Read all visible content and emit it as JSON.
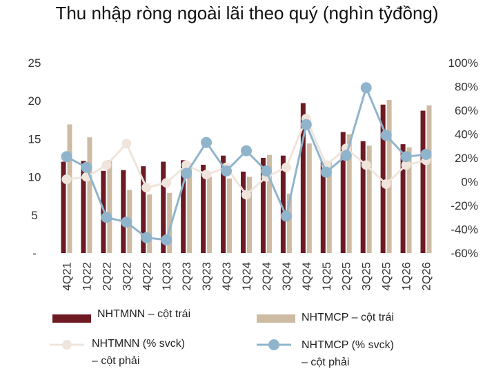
{
  "chart_data": {
    "type": "bar",
    "title": "Thu nhập ròng ngoài lãi theo quý (nghìn tỷđồng)",
    "categories": [
      "4Q21",
      "1Q22",
      "2Q22",
      "3Q22",
      "4Q22",
      "1Q23",
      "2Q23",
      "3Q23",
      "4Q23",
      "1Q24",
      "2Q24",
      "3Q24",
      "4Q24",
      "1Q25",
      "2Q25",
      "3Q25",
      "4Q25",
      "1Q26",
      "2Q26"
    ],
    "y_left": {
      "ticks": [
        "-",
        "5",
        "10",
        "15",
        "20",
        "25"
      ],
      "range": [
        0,
        25
      ]
    },
    "y_right": {
      "ticks": [
        "-60%",
        "-40%",
        "-20%",
        "0%",
        "20%",
        "40%",
        "60%",
        "80%",
        "100%"
      ],
      "range": [
        -60,
        100
      ]
    },
    "grid": false,
    "series": [
      {
        "name": "NHTMNN – cột trái",
        "kind": "bar",
        "axis": "left",
        "color": "#6e1a23",
        "values": [
          12.0,
          12.1,
          10.8,
          10.9,
          11.4,
          12.0,
          12.2,
          11.6,
          12.8,
          10.7,
          12.5,
          12.8,
          19.7,
          12.0,
          15.9,
          14.7,
          19.5,
          14.3,
          18.7
        ]
      },
      {
        "name": "NHTMCP – cột trái",
        "kind": "bar",
        "axis": "left",
        "color": "#cdbba3",
        "values": [
          16.9,
          15.2,
          12.2,
          8.3,
          7.7,
          7.9,
          11.8,
          10.0,
          9.8,
          10.0,
          12.9,
          7.8,
          14.4,
          11.9,
          15.6,
          14.1,
          20.1,
          13.9,
          19.4
        ]
      },
      {
        "name": "NHTMNN (% svck) – cột phải",
        "kind": "line",
        "axis": "right",
        "color": "#efe5dc",
        "values": [
          2,
          4,
          14,
          32,
          -5,
          -1,
          14,
          6,
          12,
          -11,
          4,
          12,
          53,
          14,
          28,
          14,
          -2,
          14,
          18
        ]
      },
      {
        "name": "NHTMCP (% svck) – cột phải",
        "kind": "line",
        "axis": "right",
        "color": "#8fb4cc",
        "values": [
          21,
          12,
          -30,
          -34,
          -47,
          -49,
          7,
          33,
          9,
          26,
          9,
          -29,
          48,
          8,
          22,
          79,
          39,
          21,
          23
        ]
      }
    ],
    "legend": [
      {
        "label": "NHTMNN – cột trái",
        "line2": ""
      },
      {
        "label": "NHTMCP – cột trái",
        "line2": ""
      },
      {
        "label": "NHTMNN (% svck)",
        "line2": "– cột phải"
      },
      {
        "label": "NHTMCP (% svck)",
        "line2": "– cột phải"
      }
    ]
  }
}
